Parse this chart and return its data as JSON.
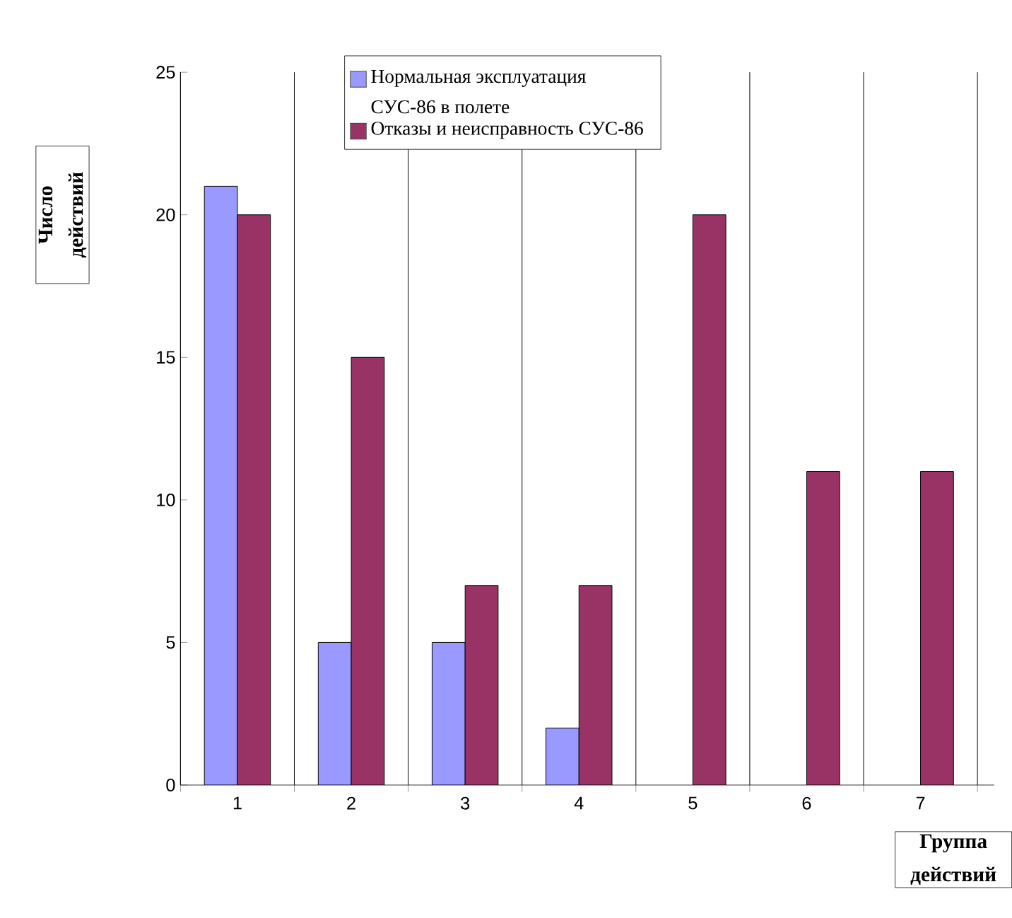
{
  "chart_data": {
    "type": "bar",
    "xlabel": "Группа действий",
    "ylabel": "Число действий",
    "categories": [
      "1",
      "2",
      "3",
      "4",
      "5",
      "6",
      "7"
    ],
    "series": [
      {
        "name": "Нормальная эксплуатация СУС-86 в полете",
        "color": "#9999ff",
        "values": [
          21,
          5,
          5,
          2,
          null,
          null,
          null
        ]
      },
      {
        "name": "Отказы и неисправность СУС-86",
        "color": "#993366",
        "values": [
          20,
          15,
          7,
          7,
          20,
          11,
          11
        ]
      }
    ],
    "ylim": [
      0,
      25
    ],
    "yticks": [
      0,
      5,
      10,
      15,
      20,
      25
    ],
    "grid": "x",
    "legend": "top"
  }
}
